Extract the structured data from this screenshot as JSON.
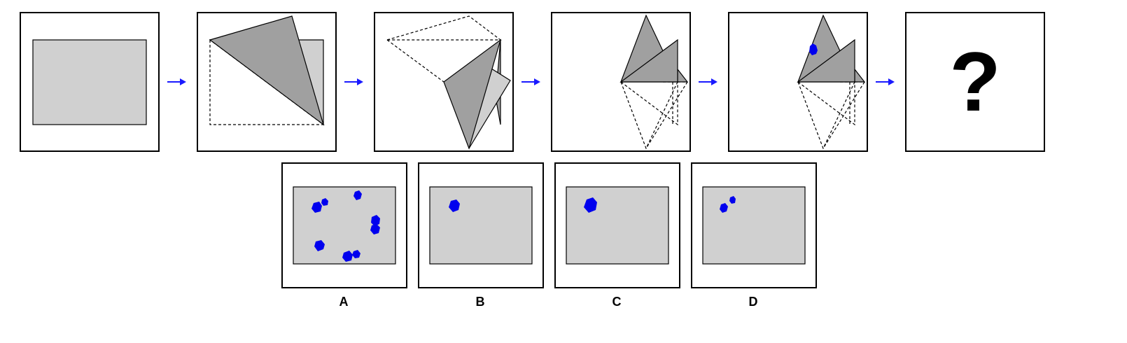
{
  "puzzle": {
    "sequence_count": 6,
    "question_mark": "?",
    "options": [
      {
        "label": "A"
      },
      {
        "label": "B"
      },
      {
        "label": "C"
      },
      {
        "label": "D"
      }
    ],
    "colors": {
      "paper": "#d0d0d0",
      "fold": "#a0a0a0",
      "hole": "#0000ee",
      "arrow": "#1a1aff",
      "stroke": "#000000"
    }
  }
}
